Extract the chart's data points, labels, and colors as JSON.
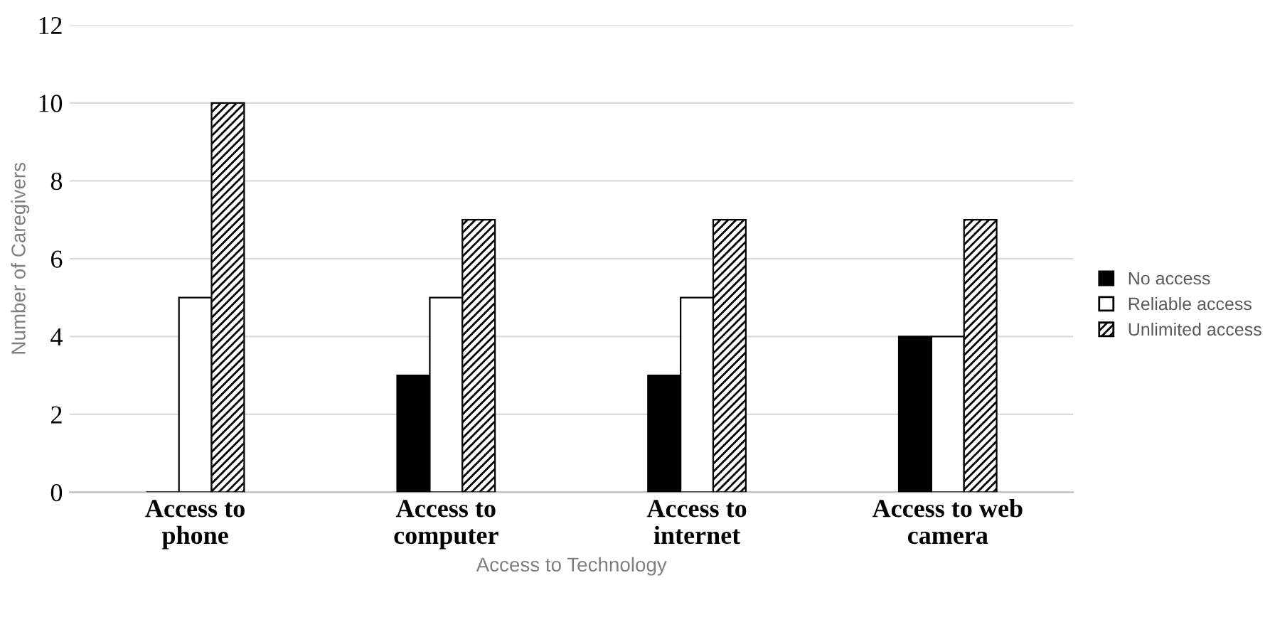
{
  "chart_data": {
    "type": "bar",
    "xlabel": "Access to Technology",
    "ylabel": "Number of Caregivers",
    "categories": [
      "Access to\nphone",
      "Access to\ncomputer",
      "Access to\ninternet",
      "Access to web\ncamera"
    ],
    "series": [
      {
        "name": "No access",
        "color": "#000000",
        "values": [
          0,
          3,
          3,
          4
        ]
      },
      {
        "name": "Reliable access",
        "color": "#ffffff",
        "values": [
          5,
          5,
          5,
          4
        ]
      },
      {
        "name": "Unlimited access",
        "color": "#000000",
        "values": [
          10,
          7,
          7,
          7
        ]
      }
    ],
    "ylim": [
      0,
      12
    ],
    "yticks": [
      0,
      2,
      4,
      6,
      8,
      10,
      12
    ],
    "grid": "y",
    "legend": "right"
  }
}
